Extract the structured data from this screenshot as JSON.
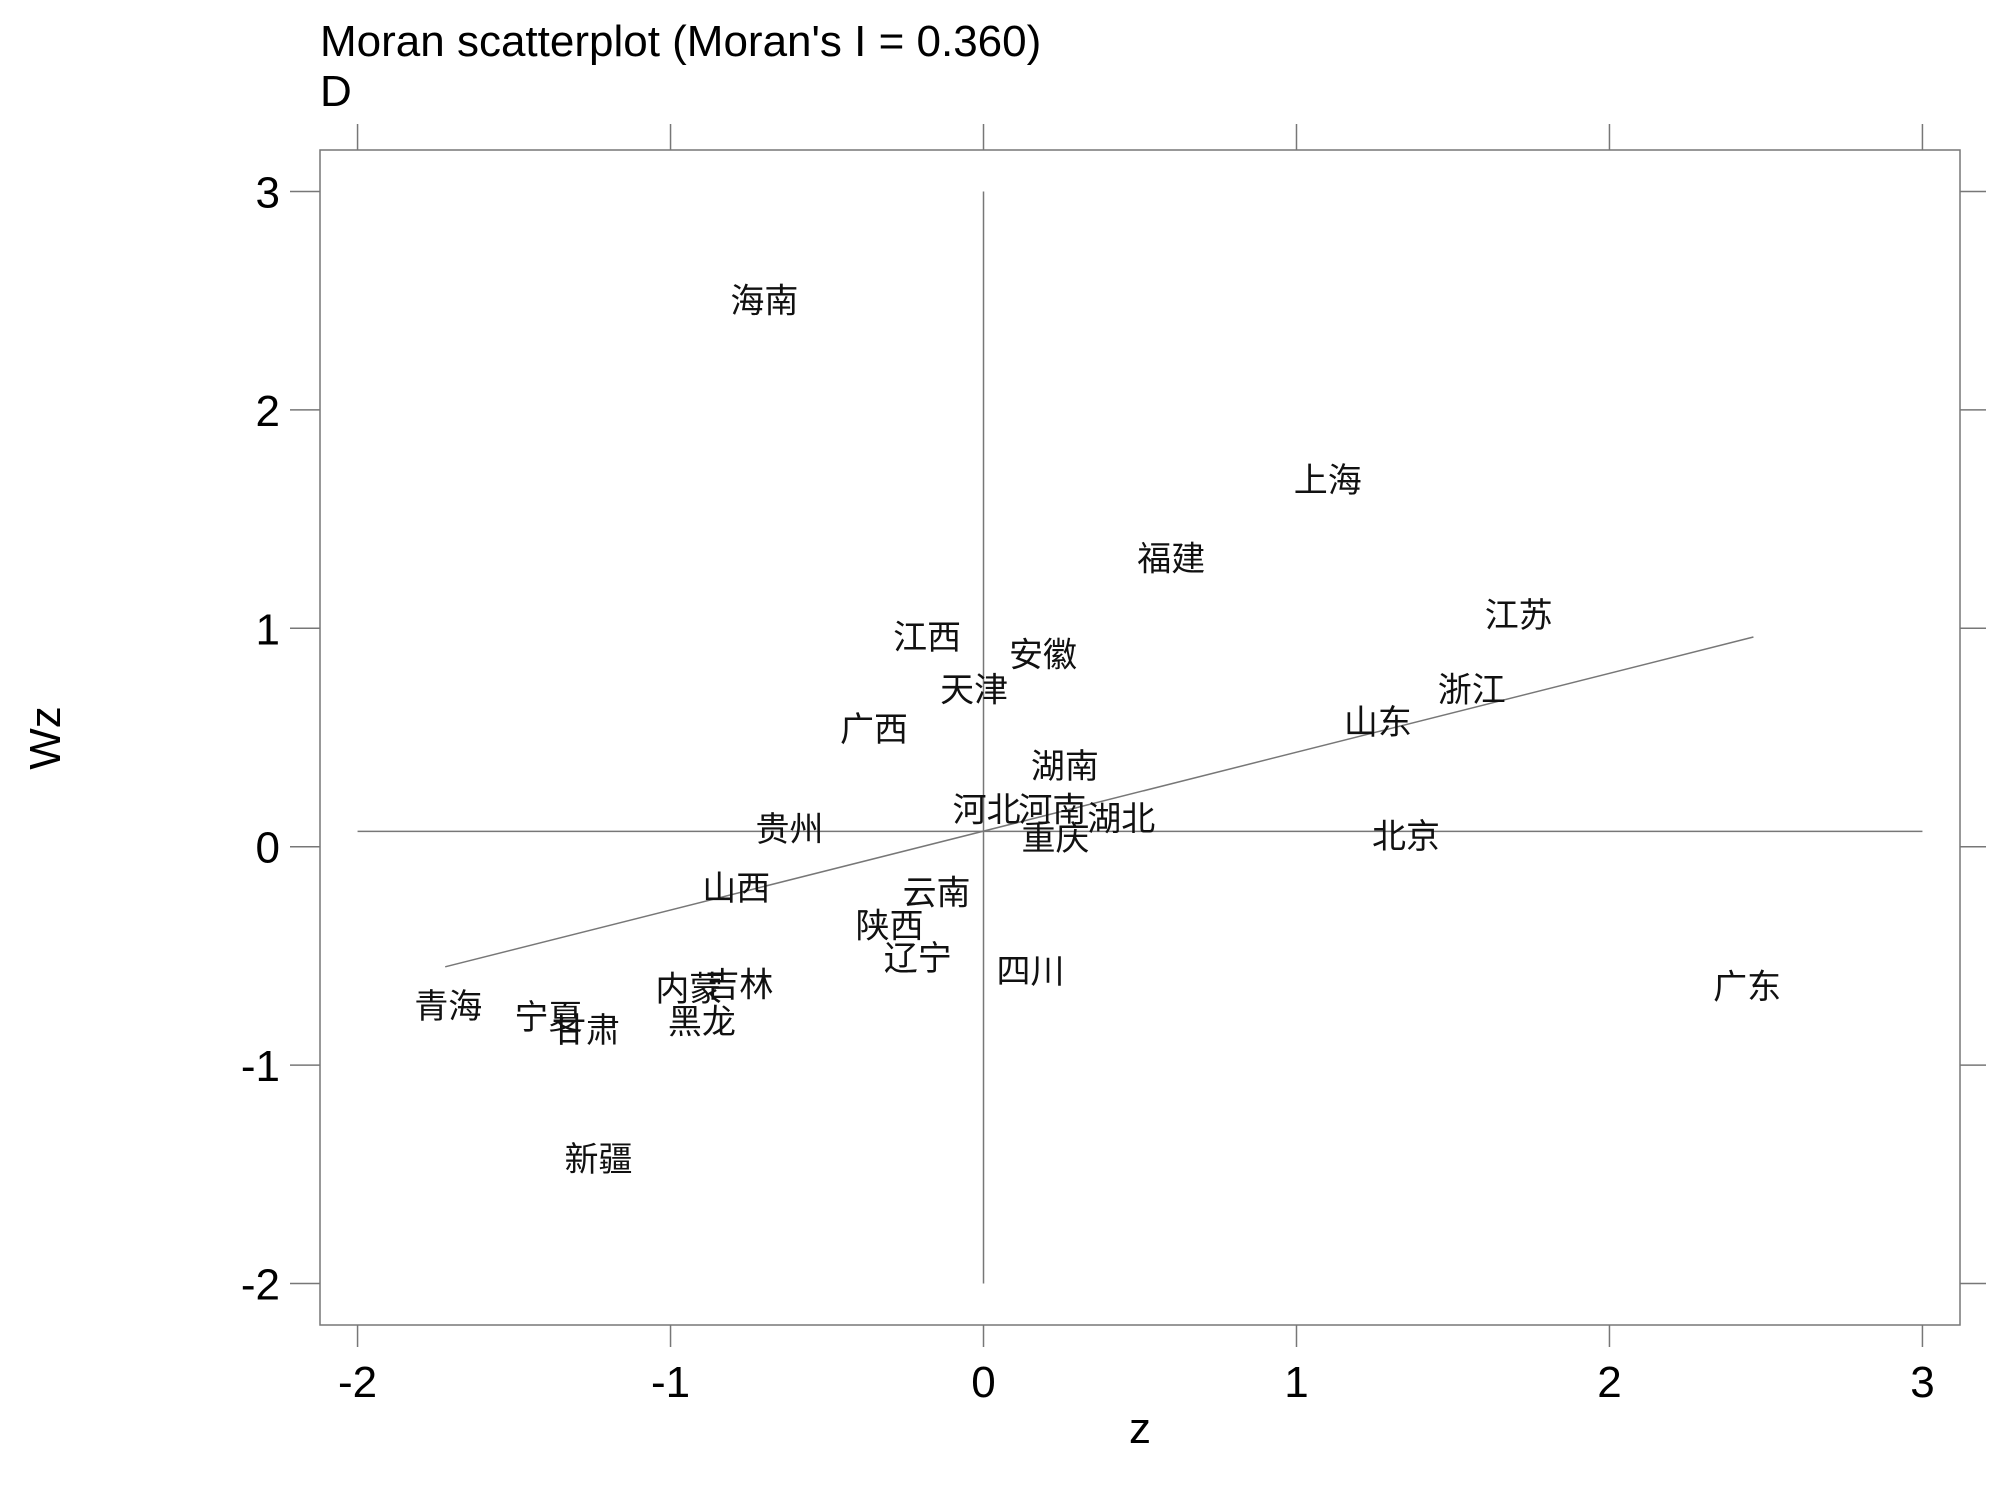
{
  "chart_data": {
    "type": "scatter",
    "title": "Moran scatterplot (Moran's I = 0.360)",
    "subtitle": "D",
    "xlabel": "z",
    "ylabel": "Wz",
    "xlim": [
      -2.12,
      3.12
    ],
    "ylim": [
      -2.19,
      3.19
    ],
    "x_ticks": [
      -2,
      -1,
      0,
      1,
      2,
      3
    ],
    "x_tick_labels": [
      "-2",
      "-1",
      "0",
      "1",
      "2",
      "3"
    ],
    "y_ticks": [
      -2,
      -1,
      0,
      1,
      2,
      3
    ],
    "y_tick_labels": [
      "-2",
      "-1",
      "0",
      "1",
      "2",
      "3"
    ],
    "grid": false,
    "mean_lines": {
      "x": 0,
      "y": 0.07,
      "x_range": [
        -2,
        3
      ],
      "y_range": [
        -2,
        3
      ]
    },
    "regression_line": {
      "x": [
        -1.72,
        2.46
      ],
      "y": [
        -0.55,
        0.96
      ]
    },
    "points": [
      {
        "label": "海南",
        "x": -0.7,
        "y": 2.5
      },
      {
        "label": "上海",
        "x": 1.1,
        "y": 1.68
      },
      {
        "label": "福建",
        "x": 0.6,
        "y": 1.32
      },
      {
        "label": "江苏",
        "x": 1.71,
        "y": 1.06
      },
      {
        "label": "江西",
        "x": -0.18,
        "y": 0.96
      },
      {
        "label": "安徽",
        "x": 0.19,
        "y": 0.88
      },
      {
        "label": "浙江",
        "x": 1.56,
        "y": 0.72
      },
      {
        "label": "天津",
        "x": -0.03,
        "y": 0.72
      },
      {
        "label": "山东",
        "x": 1.26,
        "y": 0.57
      },
      {
        "label": "广西",
        "x": -0.35,
        "y": 0.54
      },
      {
        "label": "湖南",
        "x": 0.26,
        "y": 0.37
      },
      {
        "label": "河北",
        "x": 0.01,
        "y": 0.17
      },
      {
        "label": "河南",
        "x": 0.22,
        "y": 0.17
      },
      {
        "label": "湖北",
        "x": 0.44,
        "y": 0.13
      },
      {
        "label": "贵州",
        "x": -0.62,
        "y": 0.08
      },
      {
        "label": "重庆",
        "x": 0.23,
        "y": 0.04
      },
      {
        "label": "北京",
        "x": 1.35,
        "y": 0.05
      },
      {
        "label": "山西",
        "x": -0.79,
        "y": -0.19
      },
      {
        "label": "云南",
        "x": -0.15,
        "y": -0.21
      },
      {
        "label": "陕西",
        "x": -0.3,
        "y": -0.36
      },
      {
        "label": "辽宁",
        "x": -0.21,
        "y": -0.51
      },
      {
        "label": "四川",
        "x": 0.15,
        "y": -0.57
      },
      {
        "label": "广东",
        "x": 2.44,
        "y": -0.64
      },
      {
        "label": "吉林",
        "x": -0.78,
        "y": -0.63
      },
      {
        "label": "内蒙",
        "x": -0.94,
        "y": -0.65
      },
      {
        "label": "青海",
        "x": -1.71,
        "y": -0.73
      },
      {
        "label": "宁夏",
        "x": -1.39,
        "y": -0.78
      },
      {
        "label": "黑龙",
        "x": -0.9,
        "y": -0.8
      },
      {
        "label": "甘肃",
        "x": -1.27,
        "y": -0.84
      },
      {
        "label": "新疆",
        "x": -1.23,
        "y": -1.43
      }
    ]
  }
}
